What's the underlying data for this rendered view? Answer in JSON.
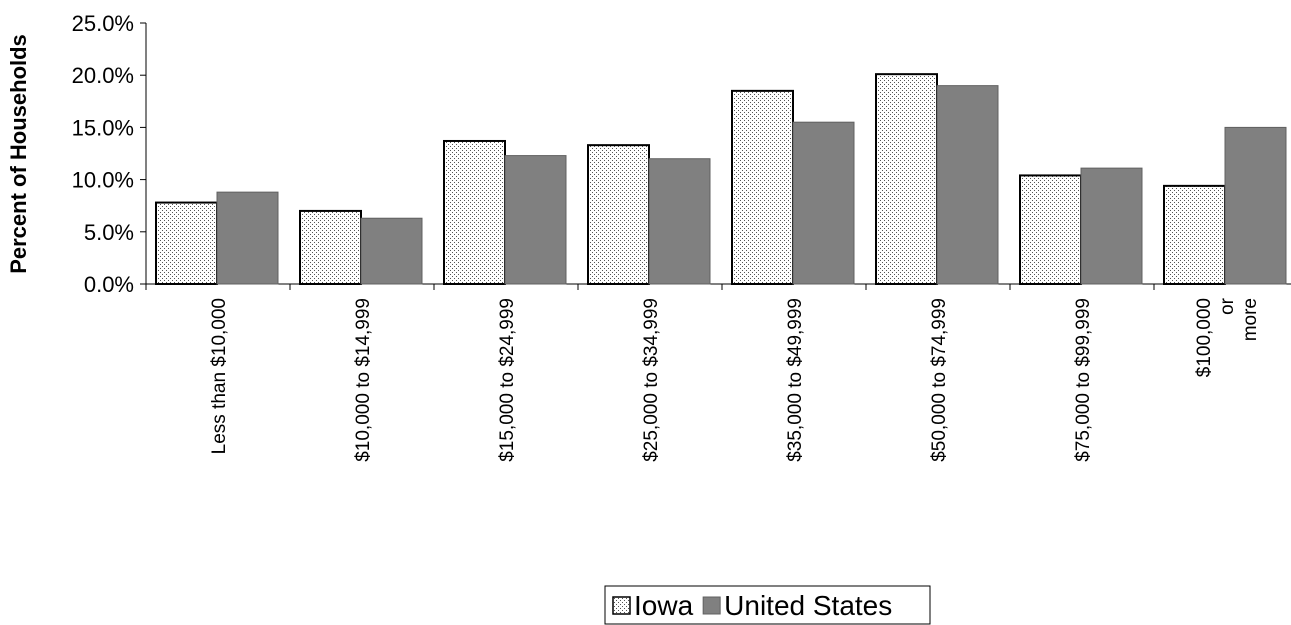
{
  "chart_data": {
    "type": "bar",
    "ylabel": "Percent of Households",
    "xlabel": "",
    "ylim": [
      0,
      25
    ],
    "yticks": [
      "0.0%",
      "5.0%",
      "10.0%",
      "15.0%",
      "20.0%",
      "25.0%"
    ],
    "categories": [
      [
        "Less than $10,000"
      ],
      [
        "$10,000 to $14,999"
      ],
      [
        "$15,000 to $24,999"
      ],
      [
        "$25,000 to $34,999"
      ],
      [
        "$35,000 to $49,999"
      ],
      [
        "$50,000 to $74,999"
      ],
      [
        "$75,000 to $99,999"
      ],
      [
        "$100,000",
        "or",
        "more"
      ]
    ],
    "series": [
      {
        "name": "Iowa",
        "pattern": "dotted",
        "color": "#ffffff",
        "values": [
          7.8,
          7.0,
          13.7,
          13.3,
          18.5,
          20.1,
          10.4,
          9.4
        ]
      },
      {
        "name": "United States",
        "pattern": "solid",
        "color": "#808080",
        "values": [
          8.8,
          6.3,
          12.3,
          12.0,
          15.5,
          19.0,
          11.1,
          15.0
        ]
      }
    ],
    "legend": {
      "position": "bottom"
    },
    "grid": false
  }
}
